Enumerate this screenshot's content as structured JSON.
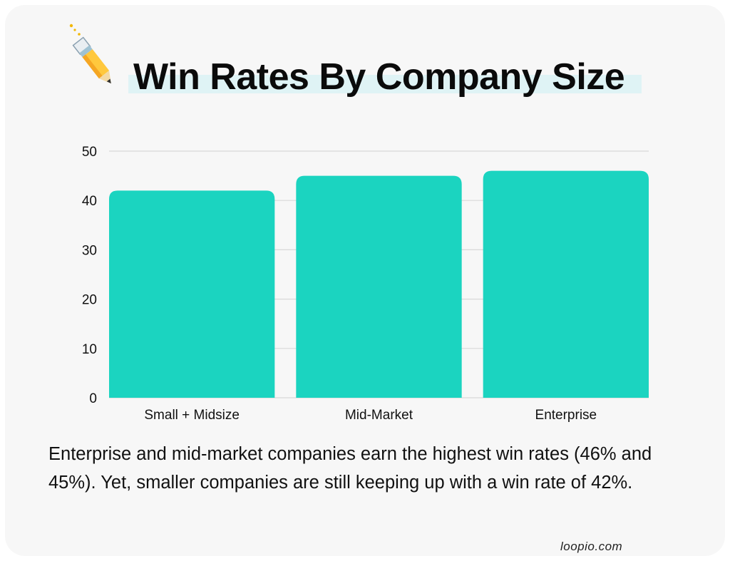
{
  "chart_data": {
    "type": "bar",
    "title": "Win Rates By Company Size",
    "categories": [
      "Small + Midsize",
      "Mid-Market",
      "Enterprise"
    ],
    "values": [
      42,
      45,
      46
    ],
    "yticks": [
      "0",
      "10",
      "20",
      "30",
      "40",
      "50"
    ],
    "ylim": [
      0,
      50
    ],
    "xlabel": "",
    "ylabel": "",
    "grid": true,
    "bar_color": "#1bd4c0",
    "grid_color": "#d8d8d8"
  },
  "caption": "Enterprise and mid-market companies earn the highest win rates (46% and 45%). Yet, smaller companies are still keeping up with a win rate of 42%.",
  "source": "loopio.com",
  "icons": {
    "title_icon": "pencil-icon"
  },
  "colors": {
    "card_background": "#f7f7f7",
    "title_highlight": "#dff3f5"
  }
}
